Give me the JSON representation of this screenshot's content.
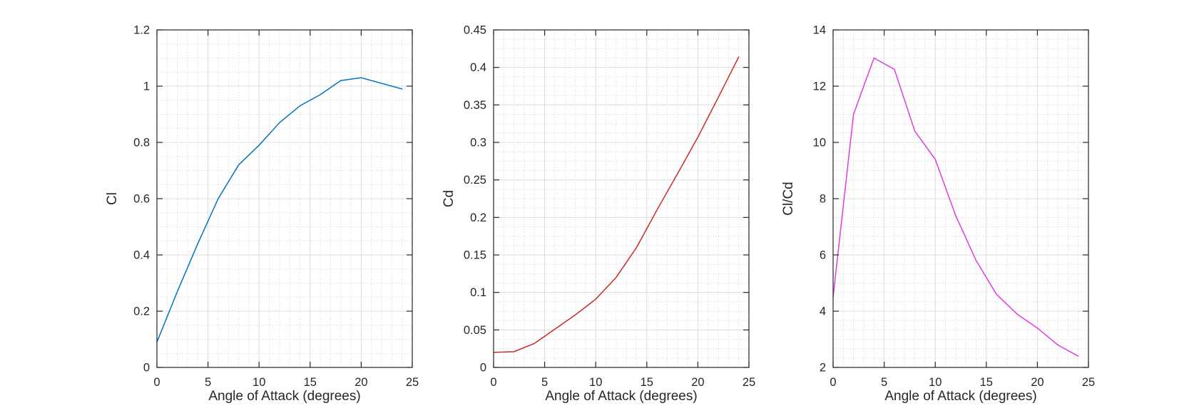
{
  "style": {
    "background": "#ffffff",
    "axis_color": "#262626",
    "text_color": "#262626",
    "major_grid_color": "#dcdcdc",
    "minor_grid_color": "#d2d2d2"
  },
  "chart_data": [
    {
      "type": "line",
      "title": "",
      "xlabel": "Angle of Attack (degrees)",
      "ylabel": "Cl",
      "x": [
        0,
        2,
        4,
        6,
        8,
        10,
        12,
        14,
        16,
        18,
        20,
        22,
        24
      ],
      "series": [
        {
          "name": "Cl",
          "color": "#0072BD",
          "values": [
            0.09,
            0.27,
            0.44,
            0.6,
            0.72,
            0.79,
            0.87,
            0.93,
            0.97,
            1.02,
            1.03,
            1.01,
            0.99
          ]
        }
      ],
      "xlim": [
        0,
        25
      ],
      "ylim": [
        0,
        1.2
      ],
      "xticks": [
        0,
        5,
        10,
        15,
        20,
        25
      ],
      "xtick_labels": [
        "0",
        "5",
        "10",
        "15",
        "20",
        "25"
      ],
      "yticks": [
        0,
        0.2,
        0.4,
        0.6,
        0.8,
        1,
        1.2
      ],
      "ytick_labels": [
        "0",
        "0.2",
        "0.4",
        "0.6",
        "0.8",
        "1",
        "1.2"
      ],
      "grid": "major-solid + minor-dotted",
      "legend": "none",
      "minor_x_step": 1,
      "minor_y_step": 0.05
    },
    {
      "type": "line",
      "title": "",
      "xlabel": "Angle of Attack (degrees)",
      "ylabel": "Cd",
      "x": [
        0,
        2,
        4,
        6,
        8,
        10,
        12,
        14,
        16,
        18,
        20,
        22,
        24
      ],
      "series": [
        {
          "name": "Cd",
          "color": "#C92B28",
          "values": [
            0.02,
            0.021,
            0.032,
            0.051,
            0.07,
            0.091,
            0.12,
            0.16,
            0.21,
            0.258,
            0.307,
            0.36,
            0.414
          ]
        }
      ],
      "xlim": [
        0,
        25
      ],
      "ylim": [
        0,
        0.45
      ],
      "xticks": [
        0,
        5,
        10,
        15,
        20,
        25
      ],
      "xtick_labels": [
        "0",
        "5",
        "10",
        "15",
        "20",
        "25"
      ],
      "yticks": [
        0,
        0.05,
        0.1,
        0.15,
        0.2,
        0.25,
        0.3,
        0.35,
        0.4,
        0.45
      ],
      "ytick_labels": [
        "0",
        "0.05",
        "0.1",
        "0.15",
        "0.2",
        "0.25",
        "0.3",
        "0.35",
        "0.4",
        "0.45"
      ],
      "grid": "major-solid + minor-dotted",
      "legend": "none",
      "minor_x_step": 1,
      "minor_y_step": 0.0125
    },
    {
      "type": "line",
      "title": "",
      "xlabel": "Angle of Attack (degrees)",
      "ylabel": "Cl/Cd",
      "x": [
        0,
        2,
        4,
        6,
        8,
        10,
        12,
        14,
        16,
        18,
        20,
        22,
        24
      ],
      "series": [
        {
          "name": "Cl/Cd",
          "color": "#E23BE0",
          "values": [
            4.5,
            11.0,
            13.0,
            12.6,
            10.4,
            9.4,
            7.4,
            5.8,
            4.6,
            3.9,
            3.4,
            2.8,
            2.4
          ]
        }
      ],
      "xlim": [
        0,
        25
      ],
      "ylim": [
        2,
        14
      ],
      "xticks": [
        0,
        5,
        10,
        15,
        20,
        25
      ],
      "xtick_labels": [
        "0",
        "5",
        "10",
        "15",
        "20",
        "25"
      ],
      "yticks": [
        2,
        4,
        6,
        8,
        10,
        12,
        14
      ],
      "ytick_labels": [
        "2",
        "4",
        "6",
        "8",
        "10",
        "12",
        "14"
      ],
      "grid": "major-solid + minor-dotted",
      "legend": "none",
      "minor_x_step": 1,
      "minor_y_step": 0.3333333
    }
  ]
}
